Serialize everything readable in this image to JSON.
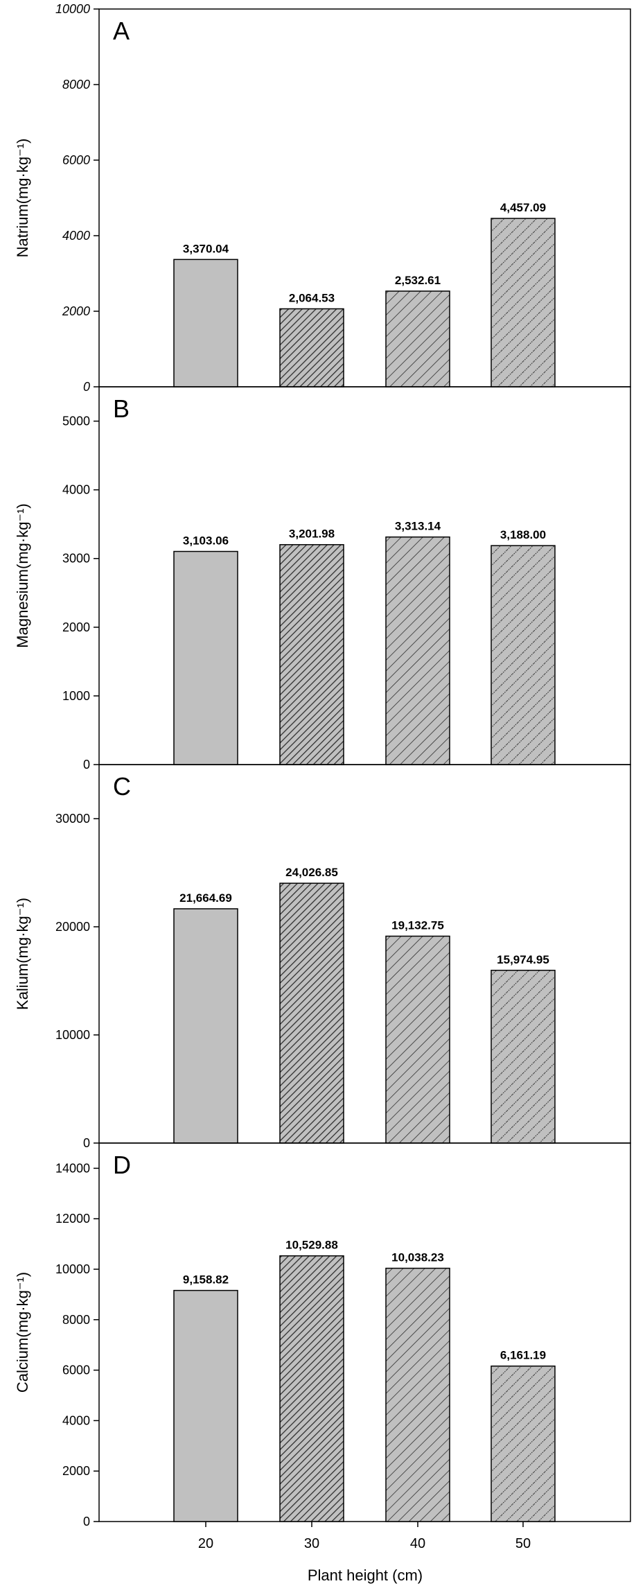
{
  "figure": {
    "xlabel": "Plant height (cm)"
  },
  "colors": {
    "bar_fill": "#c0c0c0",
    "hatch_dark": "#3a3a3a",
    "axis": "#000000"
  },
  "chart_data": [
    {
      "type": "bar",
      "panel_letter": "A",
      "categories": [
        "20",
        "30",
        "40",
        "50"
      ],
      "values": [
        3370.04,
        2064.53,
        2532.61,
        4457.09
      ],
      "value_labels": [
        "3,370.04",
        "2,064.53",
        "2,532.61",
        "4,457.09"
      ],
      "patterns": [
        "solid",
        "dense-hatch",
        "hatch",
        "dotted-hatch"
      ],
      "ylabel": "Natrium(mg·kg⁻¹)",
      "ylim": [
        0,
        10000
      ],
      "yticks": [
        0,
        2000,
        4000,
        6000,
        8000,
        10000
      ],
      "ytick_labels": [
        "0",
        "2000",
        "4000",
        "6000",
        "8000",
        "10000"
      ],
      "italic_ticks": true,
      "grid": false
    },
    {
      "type": "bar",
      "panel_letter": "B",
      "categories": [
        "20",
        "30",
        "40",
        "50"
      ],
      "values": [
        3103.06,
        3201.98,
        3313.14,
        3188.0
      ],
      "value_labels": [
        "3,103.06",
        "3,201.98",
        "3,313.14",
        "3,188.00"
      ],
      "patterns": [
        "solid",
        "dense-hatch",
        "hatch",
        "dotted-hatch"
      ],
      "ylabel": "Magnesium(mg·kg⁻¹)",
      "ylim": [
        0,
        5500
      ],
      "yticks": [
        0,
        1000,
        2000,
        3000,
        4000,
        5000
      ],
      "ytick_labels": [
        "0",
        "1000",
        "2000",
        "3000",
        "4000",
        "5000"
      ],
      "italic_ticks": false,
      "grid": false
    },
    {
      "type": "bar",
      "panel_letter": "C",
      "categories": [
        "20",
        "30",
        "40",
        "50"
      ],
      "values": [
        21664.69,
        24026.85,
        19132.75,
        15974.95
      ],
      "value_labels": [
        "21,664.69",
        "24,026.85",
        "19,132.75",
        "15,974.95"
      ],
      "patterns": [
        "solid",
        "dense-hatch",
        "hatch",
        "dotted-hatch"
      ],
      "ylabel": "Kalium(mg·kg⁻¹)",
      "ylim": [
        0,
        35000
      ],
      "yticks": [
        0,
        10000,
        20000,
        30000
      ],
      "ytick_labels": [
        "0",
        "10000",
        "20000",
        "30000"
      ],
      "italic_ticks": false,
      "grid": false
    },
    {
      "type": "bar",
      "panel_letter": "D",
      "categories": [
        "20",
        "30",
        "40",
        "50"
      ],
      "values": [
        9158.82,
        10529.88,
        10038.23,
        6161.19
      ],
      "value_labels": [
        "9,158.82",
        "10,529.88",
        "10,038.23",
        "6,161.19"
      ],
      "patterns": [
        "solid",
        "dense-hatch",
        "hatch",
        "dotted-hatch"
      ],
      "ylabel": "Calcium(mg·kg⁻¹)",
      "ylim": [
        0,
        15000
      ],
      "yticks": [
        0,
        2000,
        4000,
        6000,
        8000,
        10000,
        12000,
        14000
      ],
      "ytick_labels": [
        "0",
        "2000",
        "4000",
        "6000",
        "8000",
        "10000",
        "12000",
        "14000"
      ],
      "italic_ticks": false,
      "grid": false
    }
  ]
}
